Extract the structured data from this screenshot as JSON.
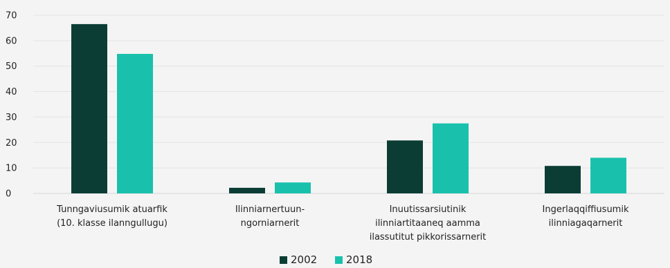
{
  "chart_data": {
    "type": "bar",
    "categories": [
      [
        "Tunngaviusumik atuarfik",
        "(10. klasse ilanngullugu)"
      ],
      [
        "Ilinniarnertuun-",
        "ngorniarnerit"
      ],
      [
        "Inuutissarsiutinik",
        "ilinniartitaaneq aamma",
        "ilassutitut pikkorissarnerit"
      ],
      [
        "Ingerlaqqiffiusumik",
        "ilinniagaqarnerit"
      ]
    ],
    "series": [
      {
        "name": "2002",
        "color": "#0b3d35",
        "values": [
          66.5,
          2.2,
          20.8,
          10.8
        ]
      },
      {
        "name": "2018",
        "color": "#19c1ad",
        "values": [
          54.8,
          4.3,
          27.5,
          14.0
        ]
      }
    ],
    "title": "",
    "xlabel": "",
    "ylabel": "",
    "ylim": [
      0,
      70
    ],
    "yticks": [
      0,
      10,
      20,
      30,
      40,
      50,
      60,
      70
    ],
    "grid": true,
    "legend_position": "bottom-center"
  }
}
